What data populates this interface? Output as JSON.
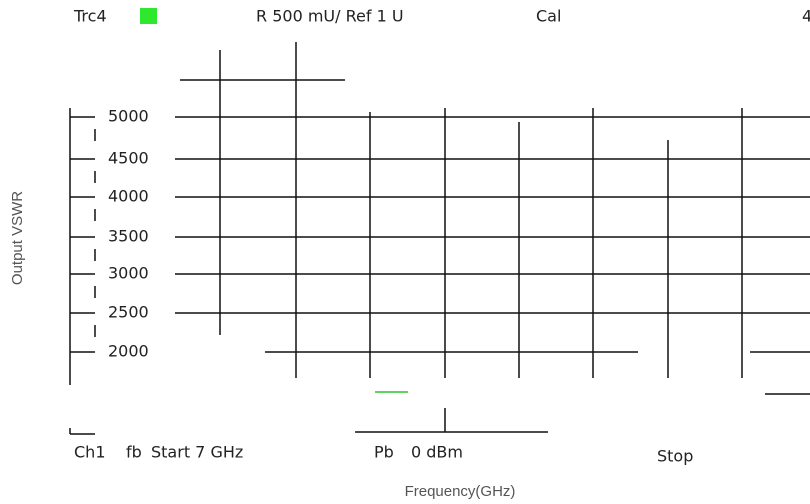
{
  "header": {
    "trace": "Trc4",
    "scale": "R  500 mU/  Ref 1 U",
    "cal": "Cal",
    "corner": "4"
  },
  "axis": {
    "y_label": "Output VSWR",
    "x_label": "Frequency(GHz)",
    "tick_labels": [
      "5000",
      "4500",
      "4000",
      "3500",
      "3000",
      "2500",
      "2000"
    ]
  },
  "footer": {
    "channel": "Ch1",
    "fb": "fb",
    "start": "Start  7 GHz",
    "pb": "Pb",
    "power": "0 dBm",
    "stop": "Stop"
  }
}
